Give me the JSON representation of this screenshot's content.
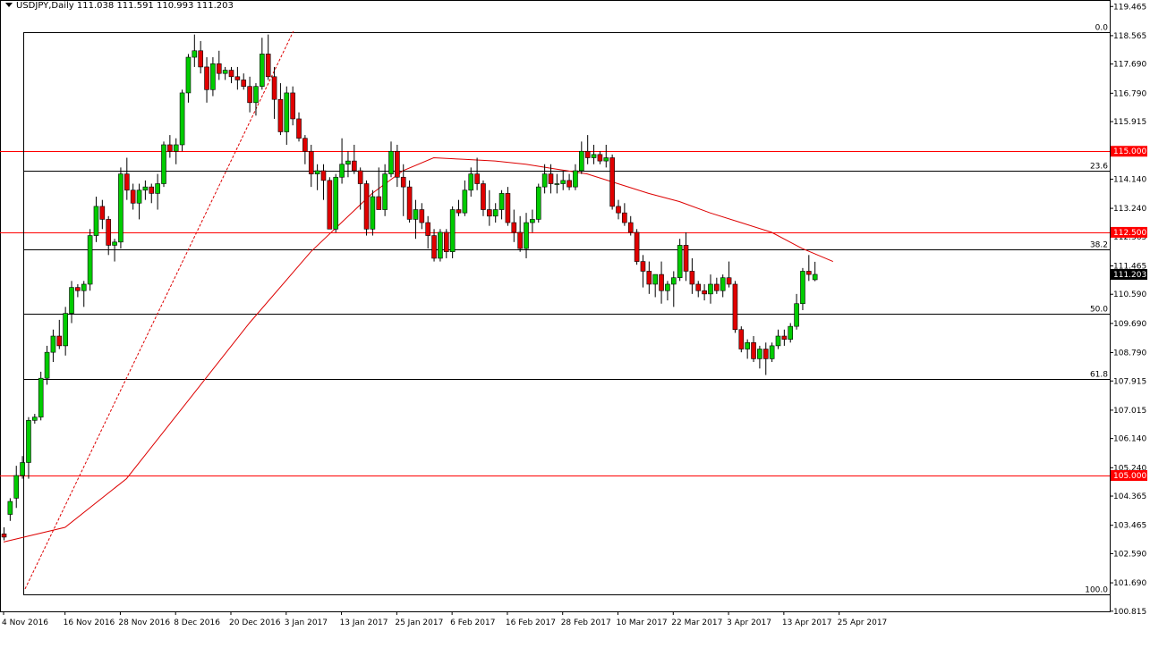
{
  "header": {
    "symbol_timeframe": "USDJPY,Daily",
    "ohlc": "111.038 111.591 110.993 111.203"
  },
  "colors": {
    "bull": "#00cc00",
    "bear": "#e00000",
    "wick": "#000000",
    "level_line": "#ff0000",
    "fib_line": "#000000",
    "ma_line": "#dd0000",
    "trend_line": "#dd0000",
    "price_box": "#000000",
    "level_box": "#ff0000"
  },
  "chart_data": {
    "type": "candlestick",
    "ylim": [
      100.81,
      119.555
    ],
    "y_ticks": [
      "119.465",
      "118.565",
      "117.690",
      "116.790",
      "115.915",
      "115.015",
      "114.140",
      "113.240",
      "112.365",
      "111.465",
      "110.590",
      "109.690",
      "108.790",
      "107.915",
      "107.015",
      "106.140",
      "105.240",
      "104.365",
      "103.465",
      "102.590",
      "101.690",
      "100.815"
    ],
    "x_ticks": [
      {
        "label": "4 Nov 2016",
        "index": 0
      },
      {
        "label": "16 Nov 2016",
        "index": 10
      },
      {
        "label": "28 Nov 2016",
        "index": 19
      },
      {
        "label": "8 Dec 2016",
        "index": 28
      },
      {
        "label": "20 Dec 2016",
        "index": 37
      },
      {
        "label": "3 Jan 2017",
        "index": 46
      },
      {
        "label": "13 Jan 2017",
        "index": 55
      },
      {
        "label": "25 Jan 2017",
        "index": 64
      },
      {
        "label": "6 Feb 2017",
        "index": 73
      },
      {
        "label": "16 Feb 2017",
        "index": 82
      },
      {
        "label": "28 Feb 2017",
        "index": 91
      },
      {
        "label": "10 Mar 2017",
        "index": 100
      },
      {
        "label": "22 Mar 2017",
        "index": 109
      },
      {
        "label": "3 Apr 2017",
        "index": 118
      },
      {
        "label": "13 Apr 2017",
        "index": 127
      },
      {
        "label": "25 Apr 2017",
        "index": 136
      }
    ],
    "candles": [
      [
        103.2,
        103.4,
        103.0,
        103.1
      ],
      [
        103.8,
        104.3,
        103.6,
        104.2
      ],
      [
        104.3,
        105.3,
        104.0,
        105.0
      ],
      [
        105.0,
        105.6,
        104.9,
        105.4
      ],
      [
        105.4,
        106.8,
        104.9,
        106.7
      ],
      [
        106.7,
        106.9,
        106.6,
        106.8
      ],
      [
        106.8,
        108.2,
        106.7,
        108.0
      ],
      [
        108.0,
        109.0,
        107.8,
        108.8
      ],
      [
        108.8,
        109.5,
        108.5,
        109.3
      ],
      [
        109.3,
        109.8,
        108.9,
        109.0
      ],
      [
        109.0,
        110.2,
        108.7,
        110.0
      ],
      [
        110.0,
        111.0,
        109.7,
        110.8
      ],
      [
        110.8,
        110.9,
        110.5,
        110.7
      ],
      [
        110.7,
        111.0,
        110.2,
        110.9
      ],
      [
        110.9,
        112.6,
        110.7,
        112.4
      ],
      [
        112.4,
        113.6,
        112.2,
        113.3
      ],
      [
        113.3,
        113.5,
        112.6,
        112.9
      ],
      [
        112.9,
        113.0,
        111.8,
        112.1
      ],
      [
        112.1,
        112.3,
        111.6,
        112.2
      ],
      [
        112.2,
        114.5,
        112.0,
        114.3
      ],
      [
        114.3,
        114.8,
        113.5,
        113.8
      ],
      [
        113.8,
        114.0,
        113.2,
        113.4
      ],
      [
        113.4,
        114.0,
        112.9,
        113.8
      ],
      [
        113.8,
        114.1,
        113.5,
        113.9
      ],
      [
        113.9,
        114.0,
        113.4,
        113.7
      ],
      [
        113.7,
        114.3,
        113.2,
        114.0
      ],
      [
        114.0,
        115.3,
        113.9,
        115.2
      ],
      [
        115.2,
        115.5,
        114.8,
        115.0
      ],
      [
        115.0,
        115.4,
        114.6,
        115.2
      ],
      [
        115.2,
        116.9,
        115.0,
        116.8
      ],
      [
        116.8,
        118.0,
        116.5,
        117.9
      ],
      [
        117.9,
        118.6,
        117.6,
        118.1
      ],
      [
        118.1,
        118.4,
        117.4,
        117.6
      ],
      [
        117.6,
        117.9,
        116.5,
        116.9
      ],
      [
        116.9,
        117.9,
        116.7,
        117.7
      ],
      [
        117.7,
        118.1,
        117.2,
        117.4
      ],
      [
        117.4,
        117.6,
        117.2,
        117.5
      ],
      [
        117.5,
        117.6,
        117.1,
        117.3
      ],
      [
        117.3,
        117.6,
        116.9,
        117.2
      ],
      [
        117.2,
        117.4,
        116.9,
        117.0
      ],
      [
        117.0,
        117.3,
        116.2,
        116.5
      ],
      [
        116.5,
        117.1,
        116.1,
        117.0
      ],
      [
        117.0,
        118.5,
        116.9,
        118.0
      ],
      [
        118.0,
        118.6,
        117.2,
        117.3
      ],
      [
        117.3,
        117.6,
        116.0,
        116.6
      ],
      [
        116.6,
        117.1,
        115.5,
        115.6
      ],
      [
        115.6,
        117.0,
        115.2,
        116.8
      ],
      [
        116.8,
        117.0,
        115.8,
        116.0
      ],
      [
        116.0,
        116.2,
        115.3,
        115.4
      ],
      [
        115.4,
        115.5,
        114.6,
        115.0
      ],
      [
        115.0,
        115.2,
        113.9,
        114.3
      ],
      [
        114.3,
        114.6,
        113.8,
        114.4
      ],
      [
        114.4,
        114.6,
        113.5,
        114.1
      ],
      [
        114.1,
        114.2,
        112.6,
        112.6
      ],
      [
        112.6,
        114.3,
        112.5,
        114.2
      ],
      [
        114.2,
        115.4,
        114.0,
        114.6
      ],
      [
        114.6,
        115.0,
        114.2,
        114.7
      ],
      [
        114.7,
        115.2,
        114.3,
        114.4
      ],
      [
        114.4,
        114.5,
        113.2,
        114.0
      ],
      [
        114.0,
        114.1,
        112.4,
        112.6
      ],
      [
        112.6,
        113.8,
        112.4,
        113.6
      ],
      [
        113.6,
        114.5,
        113.2,
        113.2
      ],
      [
        113.2,
        114.6,
        113.0,
        114.3
      ],
      [
        114.3,
        115.3,
        114.2,
        115.0
      ],
      [
        115.0,
        115.2,
        113.9,
        114.2
      ],
      [
        114.2,
        114.6,
        113.0,
        113.9
      ],
      [
        113.9,
        114.1,
        112.8,
        112.9
      ],
      [
        112.9,
        113.5,
        112.3,
        113.2
      ],
      [
        113.2,
        113.4,
        112.6,
        112.8
      ],
      [
        112.8,
        113.0,
        112.0,
        112.4
      ],
      [
        112.4,
        112.6,
        111.6,
        111.7
      ],
      [
        111.7,
        112.6,
        111.6,
        112.5
      ],
      [
        112.5,
        112.6,
        111.7,
        111.9
      ],
      [
        111.9,
        113.3,
        111.7,
        113.2
      ],
      [
        113.2,
        113.5,
        113.0,
        113.1
      ],
      [
        113.1,
        114.1,
        113.0,
        113.8
      ],
      [
        113.8,
        114.5,
        113.6,
        114.3
      ],
      [
        114.3,
        114.8,
        113.8,
        114.0
      ],
      [
        114.0,
        114.1,
        113.0,
        113.2
      ],
      [
        113.2,
        113.8,
        112.7,
        113.0
      ],
      [
        113.0,
        113.4,
        112.8,
        113.2
      ],
      [
        113.2,
        113.8,
        112.9,
        113.7
      ],
      [
        113.7,
        113.9,
        112.7,
        112.8
      ],
      [
        112.8,
        113.2,
        112.2,
        112.5
      ],
      [
        112.5,
        113.0,
        111.9,
        112.0
      ],
      [
        112.0,
        113.1,
        111.7,
        112.8
      ],
      [
        112.8,
        113.2,
        112.5,
        112.9
      ],
      [
        112.9,
        114.0,
        112.8,
        113.9
      ],
      [
        113.9,
        114.6,
        113.7,
        114.3
      ],
      [
        114.3,
        114.6,
        113.7,
        114.0
      ],
      [
        114.0,
        114.3,
        113.7,
        114.0
      ],
      [
        114.0,
        114.4,
        113.8,
        114.1
      ],
      [
        114.1,
        114.3,
        113.8,
        113.9
      ],
      [
        113.9,
        114.6,
        113.8,
        114.4
      ],
      [
        114.4,
        115.3,
        114.3,
        115.0
      ],
      [
        115.0,
        115.5,
        114.6,
        114.8
      ],
      [
        114.8,
        115.2,
        114.6,
        114.9
      ],
      [
        114.9,
        115.0,
        114.6,
        114.7
      ],
      [
        114.7,
        115.2,
        114.5,
        114.8
      ],
      [
        114.8,
        114.9,
        113.2,
        113.3
      ],
      [
        113.3,
        113.5,
        112.9,
        113.1
      ],
      [
        113.1,
        113.4,
        112.7,
        112.8
      ],
      [
        112.8,
        113.0,
        112.4,
        112.5
      ],
      [
        112.5,
        112.6,
        111.5,
        111.6
      ],
      [
        111.6,
        111.8,
        110.8,
        111.3
      ],
      [
        111.3,
        111.6,
        110.6,
        110.9
      ],
      [
        110.9,
        111.2,
        110.5,
        111.2
      ],
      [
        111.2,
        111.6,
        110.3,
        110.7
      ],
      [
        110.7,
        111.0,
        110.4,
        110.9
      ],
      [
        110.9,
        111.3,
        110.2,
        111.1
      ],
      [
        111.1,
        112.3,
        111.0,
        112.1
      ],
      [
        112.1,
        112.5,
        111.0,
        111.3
      ],
      [
        111.3,
        111.7,
        110.6,
        110.9
      ],
      [
        110.9,
        111.0,
        110.5,
        110.7
      ],
      [
        110.7,
        110.9,
        110.4,
        110.6
      ],
      [
        110.6,
        111.2,
        110.3,
        110.9
      ],
      [
        110.9,
        111.1,
        110.6,
        110.7
      ],
      [
        110.7,
        111.2,
        110.5,
        111.1
      ],
      [
        111.1,
        111.6,
        110.8,
        110.9
      ],
      [
        110.9,
        111.0,
        109.4,
        109.5
      ],
      [
        109.5,
        109.6,
        108.8,
        108.9
      ],
      [
        108.9,
        109.2,
        108.6,
        109.1
      ],
      [
        109.1,
        109.3,
        108.5,
        108.6
      ],
      [
        108.6,
        109.0,
        108.3,
        108.9
      ],
      [
        108.9,
        109.1,
        108.1,
        108.6
      ],
      [
        108.6,
        109.1,
        108.5,
        109.0
      ],
      [
        109.0,
        109.5,
        108.9,
        109.3
      ],
      [
        109.3,
        109.5,
        109.0,
        109.2
      ],
      [
        109.2,
        109.7,
        109.1,
        109.6
      ],
      [
        109.6,
        110.6,
        109.5,
        110.3
      ],
      [
        110.3,
        111.4,
        110.1,
        111.3
      ],
      [
        111.3,
        111.8,
        111.0,
        111.2
      ],
      [
        111.038,
        111.591,
        110.993,
        111.203
      ]
    ],
    "ma_curve": [
      [
        0,
        102.95
      ],
      [
        10,
        103.4
      ],
      [
        20,
        104.9
      ],
      [
        30,
        107.3
      ],
      [
        40,
        109.7
      ],
      [
        50,
        111.9
      ],
      [
        55,
        112.8
      ],
      [
        60,
        113.7
      ],
      [
        65,
        114.4
      ],
      [
        70,
        114.8
      ],
      [
        75,
        114.75
      ],
      [
        80,
        114.7
      ],
      [
        85,
        114.6
      ],
      [
        90,
        114.45
      ],
      [
        95,
        114.3
      ],
      [
        100,
        114.0
      ],
      [
        105,
        113.7
      ],
      [
        110,
        113.45
      ],
      [
        115,
        113.1
      ],
      [
        120,
        112.8
      ],
      [
        125,
        112.5
      ],
      [
        130,
        112.0
      ],
      [
        135,
        111.6
      ]
    ],
    "trend_line": {
      "from": [
        0,
        101.5
      ],
      "to": [
        46,
        118.7
      ]
    },
    "levels": [
      {
        "value": 115.0,
        "label": "115.000"
      },
      {
        "value": 112.5,
        "label": "112.500"
      },
      {
        "value": 105.0,
        "label": "105.000"
      }
    ],
    "fib_levels": [
      {
        "value": 118.66,
        "label": "0.0"
      },
      {
        "value": 114.41,
        "label": "23.6"
      },
      {
        "value": 111.98,
        "label": "38.2"
      },
      {
        "value": 109.99,
        "label": "50.0"
      },
      {
        "value": 107.97,
        "label": "61.8"
      },
      {
        "value": 101.33,
        "label": "100.0"
      }
    ],
    "current_price": {
      "value": 111.203,
      "label": "111.203"
    }
  }
}
